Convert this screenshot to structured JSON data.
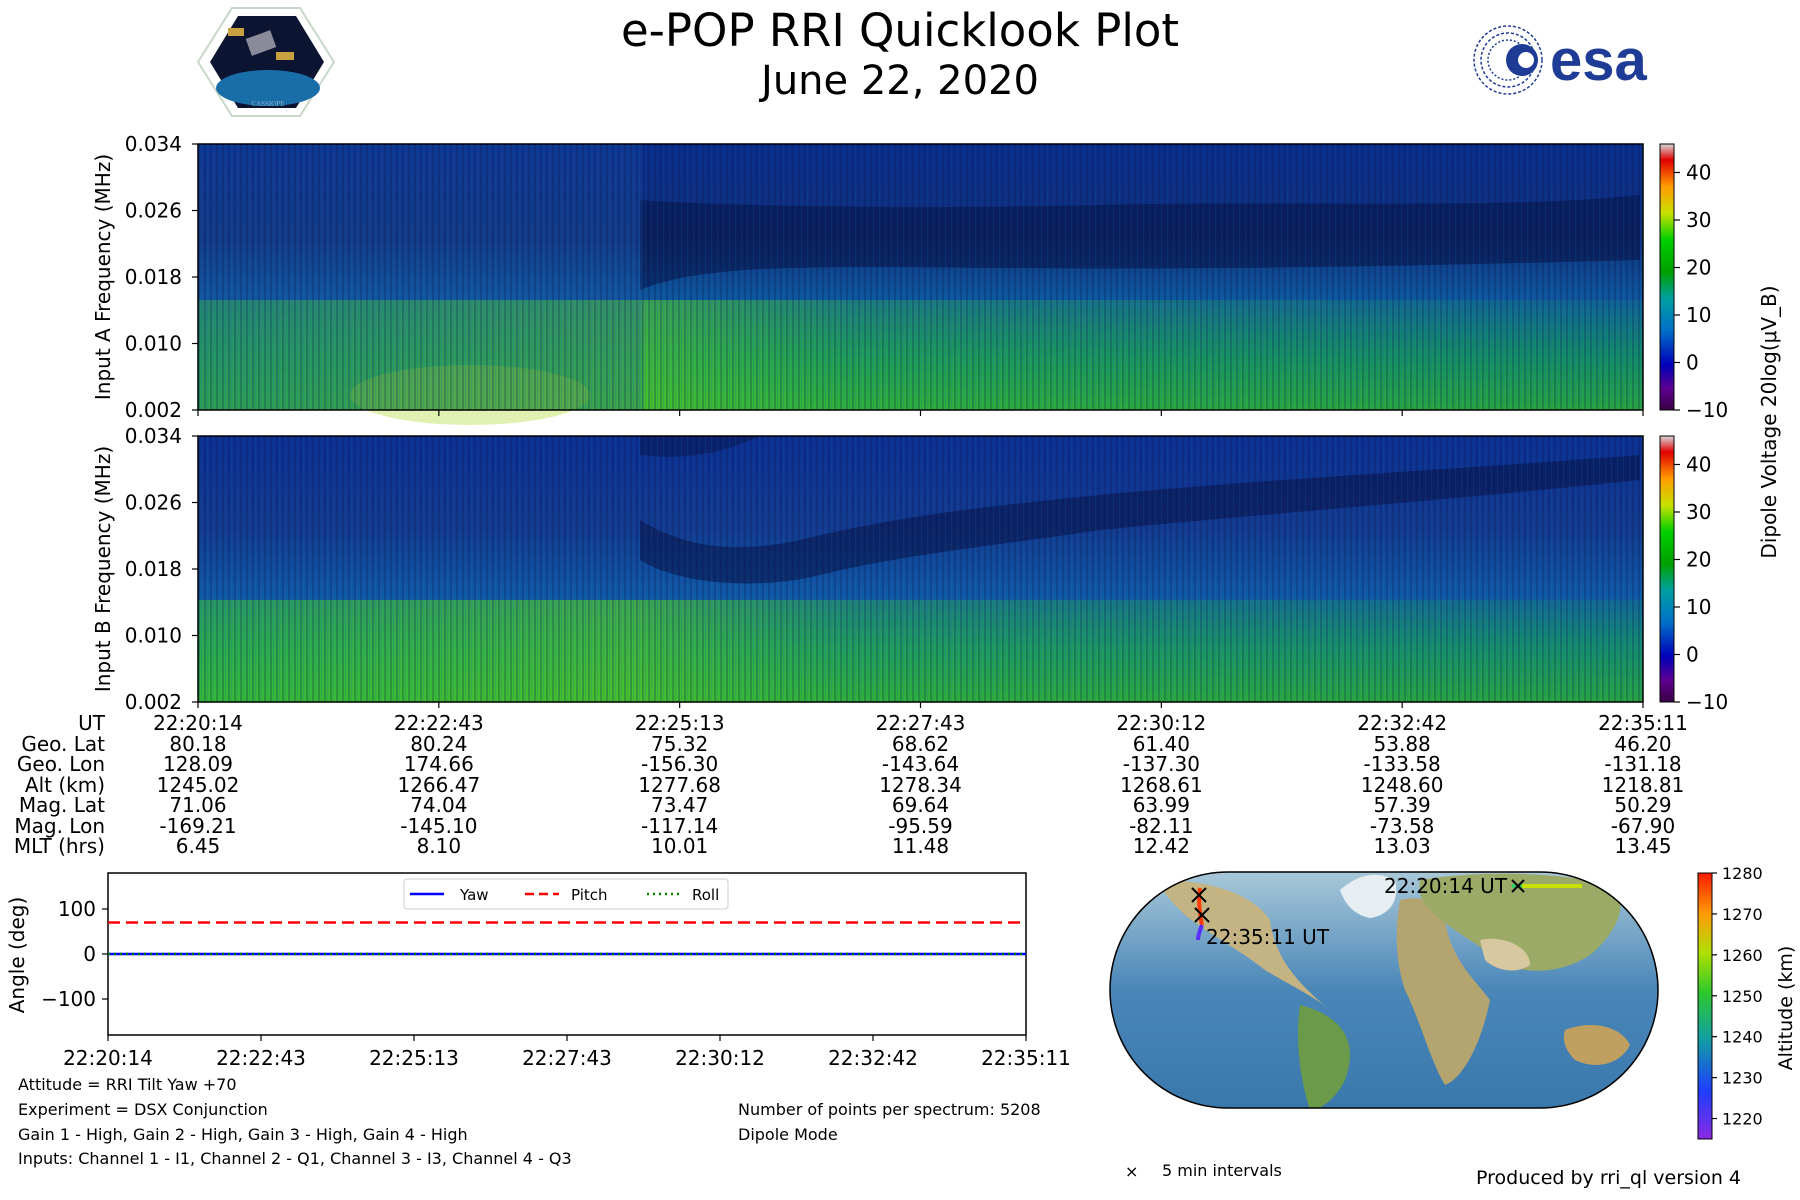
{
  "header": {
    "title": "e-POP RRI Quicklook Plot",
    "date": "June 22, 2020",
    "left_logo_text": "CASSIOPE",
    "right_logo_text": "esa"
  },
  "colors": {
    "yaw": "#0000ff",
    "pitch": "#ff0000",
    "roll": "#008000"
  },
  "chart_data": [
    {
      "type": "heatmap",
      "name": "input-a-spectrogram",
      "ylabel": "Input A Frequency (MHz)",
      "yticks": [
        "0.034",
        "0.026",
        "0.018",
        "0.010",
        "0.002"
      ],
      "ylim": [
        0.002,
        0.034
      ],
      "colorbar": {
        "label": "Dipole Voltage 20log(μV_B)",
        "ticks": [
          "40",
          "30",
          "20",
          "10",
          "0",
          "−10"
        ],
        "range": [
          -10,
          46
        ]
      }
    },
    {
      "type": "heatmap",
      "name": "input-b-spectrogram",
      "ylabel": "Input B Frequency (MHz)",
      "yticks": [
        "0.034",
        "0.026",
        "0.018",
        "0.010",
        "0.002"
      ],
      "ylim": [
        0.002,
        0.034
      ],
      "colorbar": {
        "ticks": [
          "40",
          "30",
          "20",
          "10",
          "0",
          "−10"
        ],
        "range": [
          -10,
          46
        ]
      }
    },
    {
      "type": "line",
      "name": "attitude",
      "ylabel": "Angle (deg)",
      "yticks": [
        "100",
        "0",
        "−100"
      ],
      "ylim": [
        -180,
        180
      ],
      "x": [
        "22:20:14",
        "22:22:43",
        "22:25:13",
        "22:27:43",
        "22:30:12",
        "22:32:42",
        "22:35:11"
      ],
      "series": [
        {
          "name": "Yaw",
          "style": "solid",
          "values": [
            0,
            0,
            0,
            0,
            0,
            0,
            0
          ]
        },
        {
          "name": "Pitch",
          "style": "dashed",
          "values": [
            70,
            70,
            70,
            70,
            70,
            70,
            70
          ]
        },
        {
          "name": "Roll",
          "style": "dotted",
          "values": [
            0,
            0,
            0,
            0,
            0,
            0,
            0
          ]
        }
      ]
    },
    {
      "type": "scatter",
      "name": "orbit-map",
      "start_label": "22:20:14 UT",
      "end_label": "22:35:11 UT",
      "legend": "5 min intervals",
      "colorbar": {
        "label": "Altitude (km)",
        "ticks": [
          "1280",
          "1270",
          "1260",
          "1250",
          "1240",
          "1230",
          "1220"
        ],
        "range": [
          1215,
          1280
        ]
      }
    }
  ],
  "ephemeris": {
    "labels": [
      "UT",
      "Geo. Lat",
      "Geo. Lon",
      "Alt (km)",
      "Mag. Lat",
      "Mag. Lon",
      "MLT (hrs)"
    ],
    "columns": [
      [
        "22:20:14",
        "80.18",
        "128.09",
        "1245.02",
        "71.06",
        "-169.21",
        "6.45"
      ],
      [
        "22:22:43",
        "80.24",
        "174.66",
        "1266.47",
        "74.04",
        "-145.10",
        "8.10"
      ],
      [
        "22:25:13",
        "75.32",
        "-156.30",
        "1277.68",
        "73.47",
        "-117.14",
        "10.01"
      ],
      [
        "22:27:43",
        "68.62",
        "-143.64",
        "1278.34",
        "69.64",
        "-95.59",
        "11.48"
      ],
      [
        "22:30:12",
        "61.40",
        "-137.30",
        "1268.61",
        "63.99",
        "-82.11",
        "12.42"
      ],
      [
        "22:32:42",
        "53.88",
        "-133.58",
        "1248.60",
        "57.39",
        "-73.58",
        "13.03"
      ],
      [
        "22:35:11",
        "46.20",
        "-131.18",
        "1218.81",
        "50.29",
        "-67.90",
        "13.45"
      ]
    ]
  },
  "info": {
    "attitude": "Attitude = RRI Tilt Yaw +70",
    "experiment": "Experiment = DSX Conjunction",
    "gains": "Gain 1 - High, Gain 2 - High, Gain 3 - High, Gain 4 - High",
    "inputs": "Inputs: Channel 1 - I1, Channel 2 - Q1, Channel 3 - I3, Channel 4 - Q3",
    "points": "Number of points per spectrum: 5208",
    "mode": "Dipole Mode",
    "produced_by": "Produced by rri_ql version 4"
  }
}
